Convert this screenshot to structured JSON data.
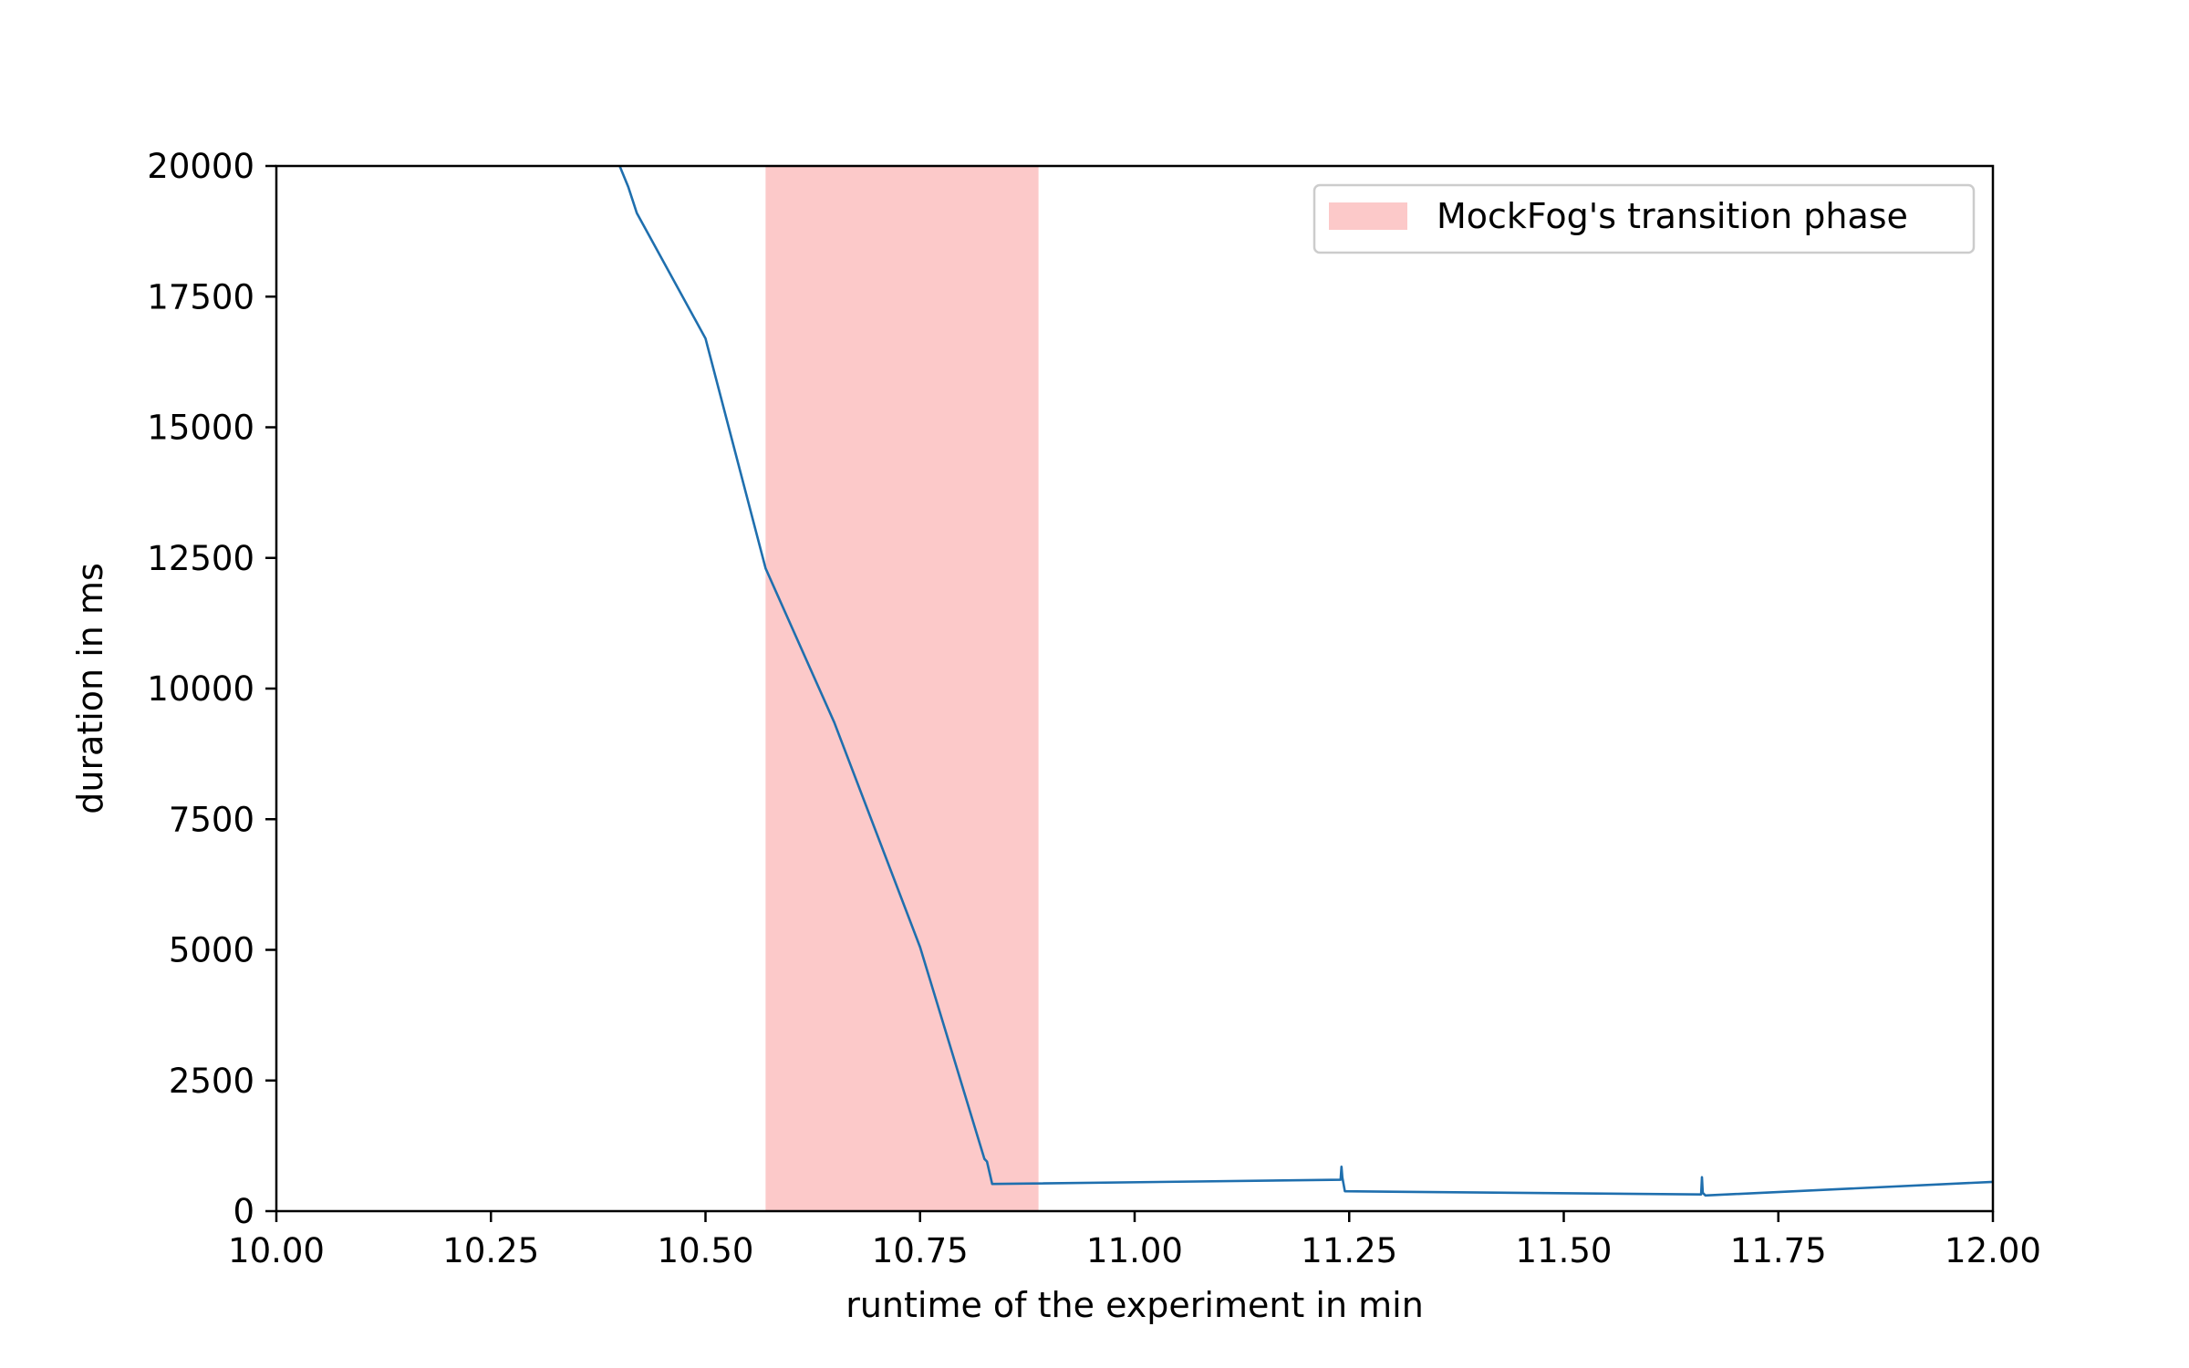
{
  "chart_data": {
    "type": "line",
    "title": "",
    "xlabel": "runtime of the experiment in min",
    "ylabel": "duration in ms",
    "xlim": [
      10.0,
      12.0
    ],
    "ylim": [
      0,
      20000
    ],
    "x_ticks": [
      "10.00",
      "10.25",
      "10.50",
      "10.75",
      "11.00",
      "11.25",
      "11.50",
      "11.75",
      "12.00"
    ],
    "y_ticks": [
      "0",
      "2500",
      "5000",
      "7500",
      "10000",
      "12500",
      "15000",
      "17500",
      "20000"
    ],
    "grid": false,
    "legend": {
      "placement": "top-right",
      "entries": [
        {
          "label": "MockFog's transition phase",
          "color": "#fcc9c9"
        }
      ]
    },
    "highlight_span": {
      "x_start": 10.57,
      "x_end": 10.888,
      "color": "#fcc9c9"
    },
    "series": [
      {
        "color": "#1f6fae",
        "x": [
          10.4,
          10.41,
          10.415,
          10.42,
          10.5,
          10.57,
          10.65,
          10.75,
          10.825,
          10.828,
          10.834,
          11.24,
          11.241,
          11.242,
          11.245,
          11.66,
          11.661,
          11.662,
          11.665,
          12.0
        ],
        "y": [
          20000,
          19600,
          19350,
          19100,
          16700,
          12300,
          9350,
          5050,
          1000,
          950,
          520,
          600,
          850,
          650,
          380,
          320,
          650,
          350,
          300,
          560
        ]
      }
    ]
  }
}
